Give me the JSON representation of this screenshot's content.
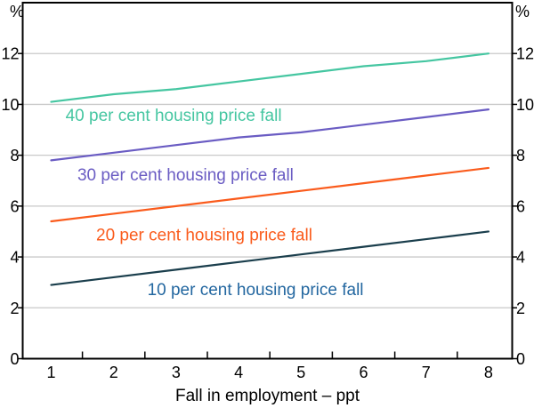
{
  "chart_data": {
    "type": "line",
    "title": "",
    "xlabel": "Fall in employment – ppt",
    "left_axis_unit": "%",
    "right_axis_unit": "%",
    "x": [
      1,
      2,
      3,
      4,
      5,
      6,
      7,
      8
    ],
    "xticks": [
      1,
      2,
      3,
      4,
      5,
      6,
      7,
      8
    ],
    "ylim": [
      0,
      14
    ],
    "yticks": [
      0,
      2,
      4,
      6,
      8,
      10,
      12
    ],
    "grid": true,
    "legend_position": "inline-labels",
    "colors": {
      "grid": "#C9C9C9",
      "axis": "#000000",
      "background": "#FFFFFF"
    },
    "series": [
      {
        "label": "40 per cent housing price fall",
        "color": "#45C6A1",
        "label_color": "#45C6A1",
        "values": [
          10.1,
          10.4,
          10.6,
          10.9,
          11.2,
          11.5,
          11.7,
          12.0
        ],
        "label_pos": [
          2.96,
          9.6
        ]
      },
      {
        "label": "30 per cent housing price fall",
        "color": "#6A5CC3",
        "label_color": "#6A5CC3",
        "values": [
          7.8,
          8.1,
          8.4,
          8.7,
          8.9,
          9.2,
          9.5,
          9.8
        ],
        "label_pos": [
          3.15,
          7.25
        ]
      },
      {
        "label": "20 per cent housing price fall",
        "color": "#FA5B1C",
        "label_color": "#FA5B1C",
        "values": [
          5.4,
          5.7,
          6.0,
          6.3,
          6.6,
          6.9,
          7.2,
          7.5
        ],
        "label_pos": [
          3.45,
          4.9
        ]
      },
      {
        "label": "10 per cent housing price fall",
        "color": "#1A3E4C",
        "label_color": "#2367A0",
        "values": [
          2.9,
          3.2,
          3.5,
          3.8,
          4.1,
          4.4,
          4.7,
          5.0
        ],
        "label_pos": [
          4.27,
          2.75
        ]
      }
    ]
  }
}
